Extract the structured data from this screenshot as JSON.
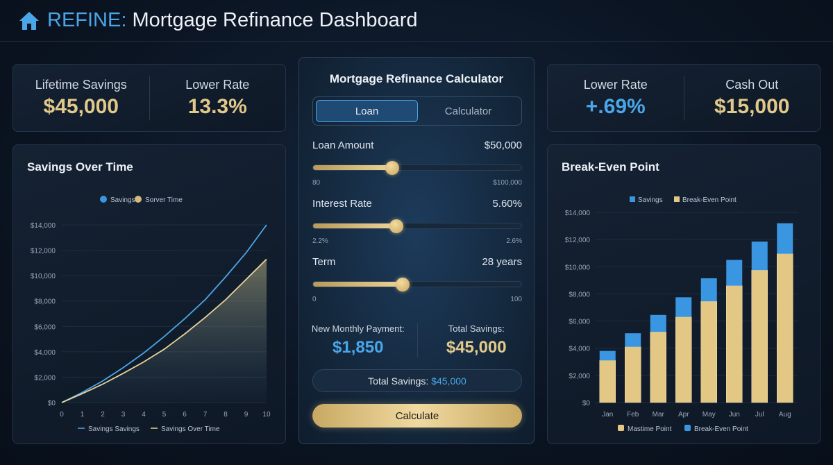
{
  "header": {
    "brand": "REFINE:",
    "title": " Mortgage Refinance Dashboard",
    "icon": "home-icon"
  },
  "left_stats": [
    {
      "label": "Lifetime Savings",
      "value": "$45,000"
    },
    {
      "label": "Lower Rate",
      "value": "13.3%"
    }
  ],
  "right_stats": [
    {
      "label": "Lower Rate",
      "value": "+.69%"
    },
    {
      "label": "Cash Out",
      "value": "$15,000"
    }
  ],
  "calculator": {
    "title": "Mortgage Refinance Calculator",
    "tabs": [
      {
        "label": "Loan",
        "active": true
      },
      {
        "label": "Calculator",
        "active": false
      }
    ],
    "fields": [
      {
        "label": "Loan Amount",
        "value": "$50,000",
        "min": "80",
        "max": "$100,000",
        "percent": 38
      },
      {
        "label": "Interest Rate",
        "value": "5.60%",
        "min": "2.2%",
        "max": "2.6%",
        "percent": 40
      },
      {
        "label": "Term",
        "value": "28 years",
        "min": "0",
        "max": "100",
        "percent": 43
      }
    ],
    "monthly_label": "New Monthly Payment:",
    "monthly_value": "$1,850",
    "savings_label": "Total Savings:",
    "savings_value": "$45,000",
    "pill_label": "Total Savings: ",
    "pill_value": "$45,000",
    "calculate_label": "Calculate"
  },
  "chart_data": [
    {
      "type": "line",
      "title": "Savings Over Time",
      "x": [
        0,
        1,
        2,
        3,
        4,
        5,
        6,
        7,
        8,
        9,
        10
      ],
      "series": [
        {
          "name": "Savings Savings",
          "color": "#4aa6e8",
          "values": [
            0,
            800,
            1700,
            2750,
            3900,
            5200,
            6600,
            8100,
            9900,
            11800,
            14000
          ]
        },
        {
          "name": "Savings Over Time",
          "color": "#e8d49a",
          "values": [
            0,
            700,
            1450,
            2300,
            3200,
            4200,
            5400,
            6700,
            8100,
            9700,
            11300
          ]
        }
      ],
      "top_legend": [
        {
          "name": "Savings",
          "color": "#3a96e0"
        },
        {
          "name": "Sorver Time",
          "color": "#d7b979"
        }
      ],
      "ylim": [
        0,
        14000
      ],
      "yticks": [
        "$0",
        "$2,000",
        "$4,000",
        "$6,000",
        "$8,000",
        "$10,000",
        "$12,000",
        "$14,000"
      ],
      "xticks": [
        "0",
        "1",
        "2",
        "3",
        "4",
        "5",
        "6",
        "7",
        "8",
        "9",
        "10"
      ],
      "grid": true
    },
    {
      "type": "bar",
      "stacked": true,
      "title": "Break-Even Point",
      "categories": [
        "Jan",
        "Feb",
        "Mar",
        "Apr",
        "May",
        "Jun",
        "Jul",
        "Aug"
      ],
      "series": [
        {
          "name": "Mastime Point",
          "color": "#e3c785",
          "values": [
            3100,
            4100,
            5200,
            6300,
            7450,
            8600,
            9750,
            10950
          ]
        },
        {
          "name": "Break-Even Point",
          "color": "#3a96e0",
          "values": [
            700,
            1000,
            1250,
            1450,
            1700,
            1900,
            2100,
            2250
          ]
        }
      ],
      "top_legend": [
        {
          "name": "Savings",
          "color": "#3a96e0"
        },
        {
          "name": "Break-Even Point",
          "color": "#e3c785"
        }
      ],
      "ylim": [
        0,
        14000
      ],
      "yticks": [
        "$0",
        "$2,000",
        "$4,000",
        "$6,000",
        "$8,000",
        "$10,000",
        "$12,000",
        "$14,000"
      ],
      "grid": true
    }
  ]
}
